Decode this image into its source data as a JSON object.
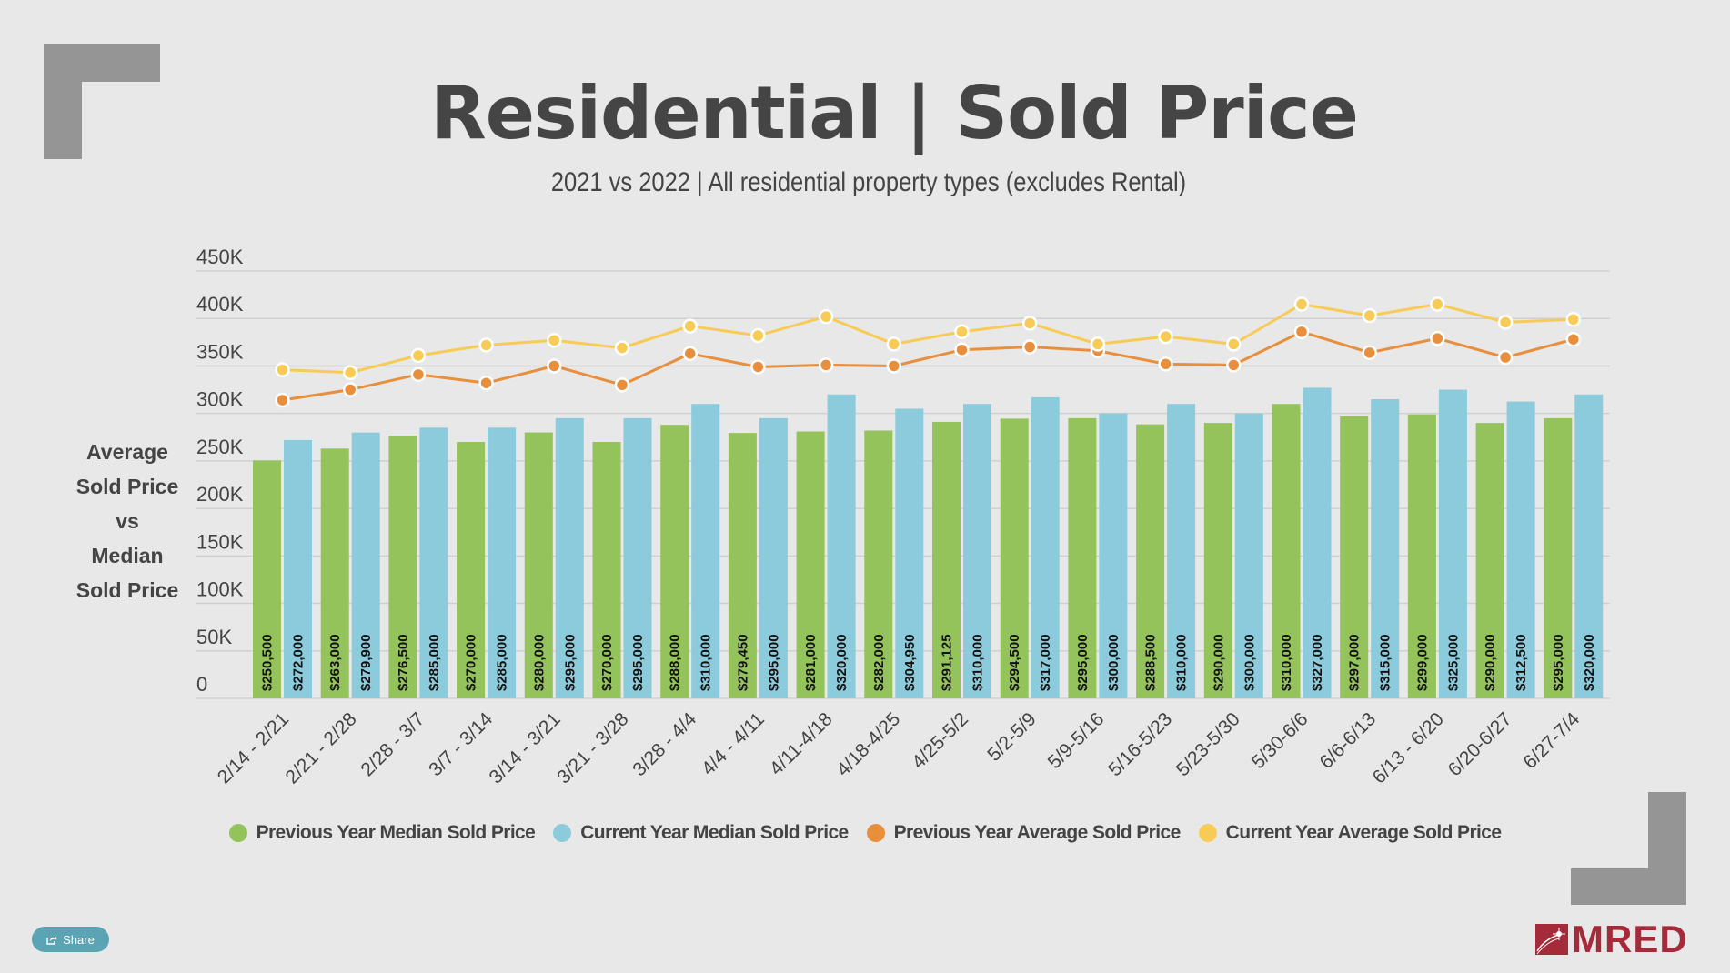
{
  "title": "Residential | Sold Price",
  "subtitle": "2021 vs 2022 | All residential property types (excludes Rental)",
  "y_axis_title_lines": [
    "Average",
    "Sold Price",
    "vs",
    "Median",
    "Sold Price"
  ],
  "share_button": {
    "label": "Share",
    "icon": "share-icon"
  },
  "logo": {
    "text": "MRED"
  },
  "colors": {
    "prev_median": "#93c35a",
    "curr_median": "#8bcbdc",
    "prev_average": "#e88f3e",
    "curr_average": "#f7cb55",
    "background": "#e7e8e7",
    "corner": "#959595",
    "share": "#5ba4b3",
    "logo": "#a52a3a"
  },
  "chart_data": {
    "type": "bar",
    "title": "Residential | Sold Price",
    "subtitle": "2021 vs 2022 | All residential property types (excludes Rental)",
    "ylabel": "Average Sold Price vs Median Sold Price",
    "xlabel": "",
    "ylim": [
      0,
      450000
    ],
    "yticks": [
      0,
      50000,
      100000,
      150000,
      200000,
      250000,
      300000,
      350000,
      400000,
      450000
    ],
    "ytick_labels": [
      "0",
      "50K",
      "100K",
      "150K",
      "200K",
      "250K",
      "300K",
      "350K",
      "400K",
      "450K"
    ],
    "grid": true,
    "legend_position": "bottom",
    "categories": [
      "2/14 - 2/21",
      "2/21 - 2/28",
      "2/28 - 3/7",
      "3/7 - 3/14",
      "3/14 - 3/21",
      "3/21 - 3/28",
      "3/28 - 4/4",
      "4/4 - 4/11",
      "4/11-4/18",
      "4/18-4/25",
      "4/25-5/2",
      "5/2-5/9",
      "5/9-5/16",
      "5/16-5/23",
      "5/23-5/30",
      "5/30-6/6",
      "6/6-6/13",
      "6/13 - 6/20",
      "6/20-6/27",
      "6/27-7/4"
    ],
    "series": [
      {
        "name": "Previous Year Median Sold Price",
        "type": "bar",
        "color": "#93c35a",
        "values": [
          250500,
          263000,
          276500,
          270000,
          280000,
          270000,
          288000,
          279450,
          281000,
          282000,
          291125,
          294500,
          295000,
          288500,
          290000,
          310000,
          297000,
          299000,
          290000,
          295000
        ],
        "labels": [
          "$250,500",
          "$263,000",
          "$276,500",
          "$270,000",
          "$280,000",
          "$270,000",
          "$288,000",
          "$279,450",
          "$281,000",
          "$282,000",
          "$291,125",
          "$294,500",
          "$295,000",
          "$288,500",
          "$290,000",
          "$310,000",
          "$297,000",
          "$299,000",
          "$290,000",
          "$295,000"
        ]
      },
      {
        "name": "Current Year Median Sold Price",
        "type": "bar",
        "color": "#8bcbdc",
        "values": [
          272000,
          279900,
          285000,
          285000,
          295000,
          295000,
          310000,
          295000,
          320000,
          304950,
          310000,
          317000,
          300000,
          310000,
          300000,
          327000,
          315000,
          325000,
          312500,
          320000
        ],
        "labels": [
          "$272,000",
          "$279,900",
          "$285,000",
          "$285,000",
          "$295,000",
          "$295,000",
          "$310,000",
          "$295,000",
          "$320,000",
          "$304,950",
          "$310,000",
          "$317,000",
          "$300,000",
          "$310,000",
          "$300,000",
          "$327,000",
          "$315,000",
          "$325,000",
          "$312,500",
          "$320,000"
        ]
      },
      {
        "name": "Previous Year Average Sold Price",
        "type": "line",
        "color": "#e88f3e",
        "values": [
          314000,
          325000,
          341000,
          332000,
          350000,
          330000,
          363000,
          349000,
          351000,
          350000,
          367000,
          370000,
          366000,
          352000,
          351000,
          386000,
          364000,
          379000,
          359000,
          378000
        ]
      },
      {
        "name": "Current Year Average Sold Price",
        "type": "line",
        "color": "#f7cb55",
        "values": [
          346000,
          343000,
          361000,
          372000,
          377000,
          369000,
          392000,
          382000,
          402000,
          373000,
          386000,
          395000,
          373000,
          381000,
          373000,
          415000,
          403000,
          415000,
          396000,
          399000
        ]
      }
    ]
  }
}
